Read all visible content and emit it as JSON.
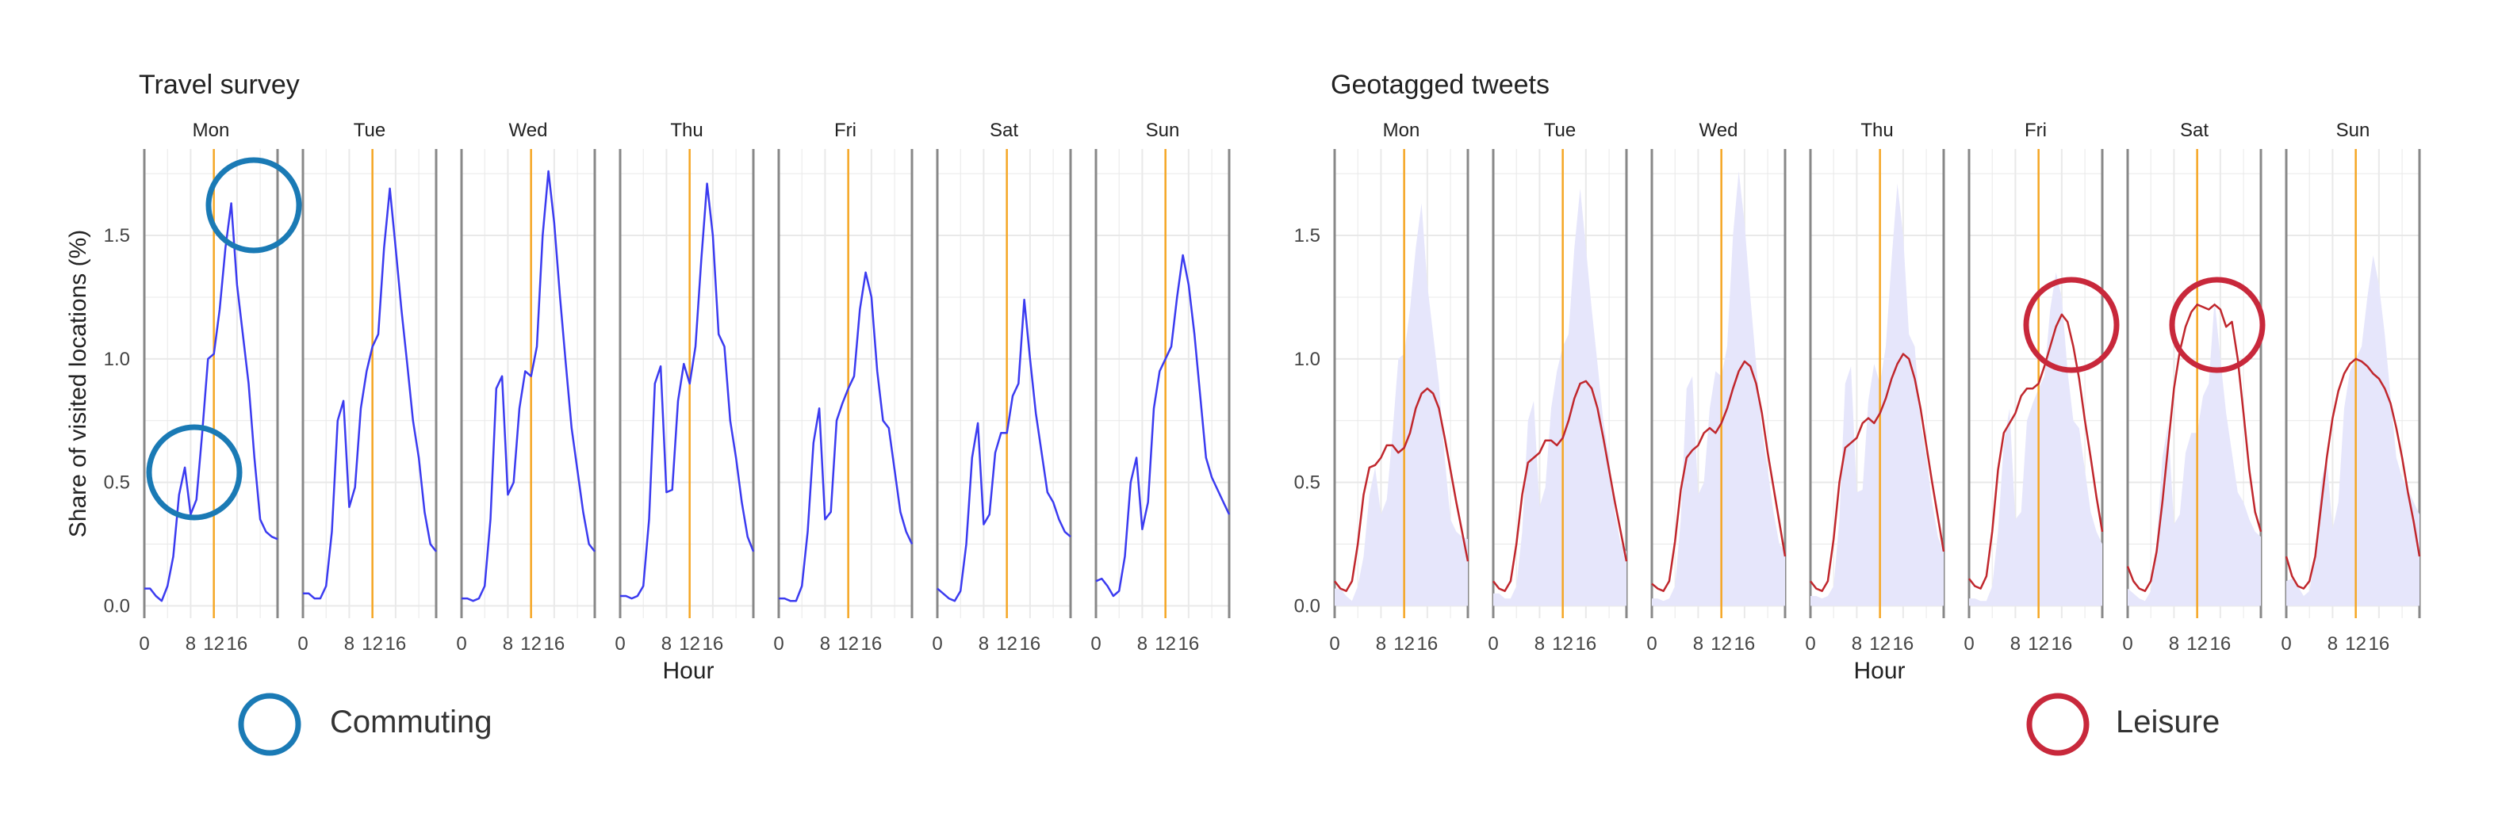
{
  "legend": {
    "commuting_label": "Commuting",
    "leisure_label": "Leisure",
    "commuting_color": "#1a7ab5",
    "leisure_color": "#c8283b"
  },
  "colors": {
    "survey_line": "#3b3bf0",
    "tweet_line": "#c0272d",
    "survey_area": "#e6e6fb",
    "noon_line": "#f5a623",
    "panel_border": "#888888",
    "grid": "#e9e9e9"
  },
  "chart_data": [
    {
      "type": "line",
      "title": "Travel survey",
      "xlabel": "Hour",
      "ylabel": "Share of visited locations (%)",
      "facets": [
        "Mon",
        "Tue",
        "Wed",
        "Thu",
        "Fri",
        "Sat",
        "Sun"
      ],
      "x": [
        0,
        1,
        2,
        3,
        4,
        5,
        6,
        7,
        8,
        9,
        10,
        11,
        12,
        13,
        14,
        15,
        16,
        17,
        18,
        19,
        20,
        21,
        22,
        23
      ],
      "x_ticks": [
        0,
        8,
        12,
        16
      ],
      "x_tick_labels": [
        "0",
        "8",
        "12",
        "16"
      ],
      "y_ticks": [
        0.0,
        0.5,
        1.0,
        1.5
      ],
      "y_tick_labels": [
        "0.0",
        "0.5",
        "1.0",
        "1.5"
      ],
      "ylim": [
        -0.05,
        1.85
      ],
      "vline_x": 12,
      "series": [
        {
          "facet": "Mon",
          "values": [
            0.07,
            0.07,
            0.04,
            0.02,
            0.08,
            0.2,
            0.45,
            0.56,
            0.37,
            0.43,
            0.7,
            1.0,
            1.02,
            1.2,
            1.45,
            1.63,
            1.3,
            1.1,
            0.9,
            0.6,
            0.35,
            0.3,
            0.28,
            0.27
          ]
        },
        {
          "facet": "Tue",
          "values": [
            0.05,
            0.05,
            0.03,
            0.03,
            0.08,
            0.3,
            0.75,
            0.83,
            0.4,
            0.48,
            0.8,
            0.95,
            1.05,
            1.1,
            1.45,
            1.69,
            1.45,
            1.2,
            0.98,
            0.75,
            0.6,
            0.38,
            0.25,
            0.22
          ]
        },
        {
          "facet": "Wed",
          "values": [
            0.03,
            0.03,
            0.02,
            0.03,
            0.08,
            0.35,
            0.88,
            0.93,
            0.45,
            0.5,
            0.8,
            0.95,
            0.93,
            1.05,
            1.5,
            1.76,
            1.55,
            1.25,
            0.98,
            0.72,
            0.55,
            0.38,
            0.25,
            0.22
          ]
        },
        {
          "facet": "Thu",
          "values": [
            0.04,
            0.04,
            0.03,
            0.04,
            0.08,
            0.35,
            0.9,
            0.97,
            0.46,
            0.47,
            0.83,
            0.98,
            0.9,
            1.05,
            1.4,
            1.71,
            1.5,
            1.1,
            1.05,
            0.75,
            0.6,
            0.42,
            0.28,
            0.22
          ]
        },
        {
          "facet": "Fri",
          "values": [
            0.03,
            0.03,
            0.02,
            0.02,
            0.08,
            0.3,
            0.66,
            0.8,
            0.35,
            0.38,
            0.75,
            0.82,
            0.88,
            0.93,
            1.2,
            1.35,
            1.25,
            0.95,
            0.75,
            0.72,
            0.55,
            0.38,
            0.3,
            0.25
          ]
        },
        {
          "facet": "Sat",
          "values": [
            0.07,
            0.05,
            0.03,
            0.02,
            0.06,
            0.25,
            0.6,
            0.74,
            0.33,
            0.37,
            0.62,
            0.7,
            0.7,
            0.85,
            0.9,
            1.24,
            1.0,
            0.78,
            0.62,
            0.46,
            0.42,
            0.35,
            0.3,
            0.28
          ]
        },
        {
          "facet": "Sun",
          "values": [
            0.1,
            0.11,
            0.08,
            0.04,
            0.06,
            0.2,
            0.5,
            0.6,
            0.31,
            0.42,
            0.8,
            0.95,
            1.0,
            1.05,
            1.25,
            1.42,
            1.3,
            1.1,
            0.85,
            0.6,
            0.52,
            0.47,
            0.42,
            0.37
          ]
        }
      ]
    },
    {
      "type": "line",
      "title": "Geotagged tweets",
      "xlabel": "Hour",
      "ylabel": "",
      "facets": [
        "Mon",
        "Tue",
        "Wed",
        "Thu",
        "Fri",
        "Sat",
        "Sun"
      ],
      "x": [
        0,
        1,
        2,
        3,
        4,
        5,
        6,
        7,
        8,
        9,
        10,
        11,
        12,
        13,
        14,
        15,
        16,
        17,
        18,
        19,
        20,
        21,
        22,
        23
      ],
      "x_ticks": [
        0,
        8,
        12,
        16
      ],
      "x_tick_labels": [
        "0",
        "8",
        "12",
        "16"
      ],
      "y_ticks": [
        0.0,
        0.5,
        1.0,
        1.5
      ],
      "y_tick_labels": [
        "0.0",
        "0.5",
        "1.0",
        "1.5"
      ],
      "ylim": [
        -0.05,
        1.85
      ],
      "vline_x": 12,
      "background_area": "Travel survey (shaded)",
      "series": [
        {
          "facet": "Mon",
          "values": [
            0.1,
            0.07,
            0.06,
            0.1,
            0.25,
            0.45,
            0.56,
            0.57,
            0.6,
            0.65,
            0.65,
            0.62,
            0.64,
            0.7,
            0.8,
            0.86,
            0.88,
            0.86,
            0.8,
            0.68,
            0.55,
            0.42,
            0.3,
            0.18
          ]
        },
        {
          "facet": "Tue",
          "values": [
            0.1,
            0.07,
            0.06,
            0.1,
            0.25,
            0.45,
            0.58,
            0.6,
            0.62,
            0.67,
            0.67,
            0.65,
            0.68,
            0.75,
            0.84,
            0.9,
            0.91,
            0.88,
            0.8,
            0.68,
            0.55,
            0.42,
            0.3,
            0.18
          ]
        },
        {
          "facet": "Wed",
          "values": [
            0.09,
            0.07,
            0.06,
            0.1,
            0.26,
            0.47,
            0.6,
            0.63,
            0.65,
            0.7,
            0.72,
            0.7,
            0.74,
            0.8,
            0.88,
            0.95,
            0.99,
            0.97,
            0.9,
            0.78,
            0.62,
            0.48,
            0.34,
            0.2
          ]
        },
        {
          "facet": "Thu",
          "values": [
            0.1,
            0.07,
            0.06,
            0.1,
            0.27,
            0.5,
            0.64,
            0.66,
            0.68,
            0.74,
            0.76,
            0.74,
            0.78,
            0.84,
            0.92,
            0.98,
            1.02,
            1.0,
            0.92,
            0.8,
            0.65,
            0.5,
            0.36,
            0.22
          ]
        },
        {
          "facet": "Fri",
          "values": [
            0.11,
            0.08,
            0.07,
            0.12,
            0.3,
            0.55,
            0.7,
            0.74,
            0.78,
            0.85,
            0.88,
            0.88,
            0.9,
            0.97,
            1.05,
            1.13,
            1.18,
            1.15,
            1.05,
            0.92,
            0.75,
            0.6,
            0.44,
            0.3
          ]
        },
        {
          "facet": "Sat",
          "values": [
            0.16,
            0.1,
            0.07,
            0.06,
            0.1,
            0.22,
            0.42,
            0.65,
            0.88,
            1.03,
            1.13,
            1.19,
            1.22,
            1.21,
            1.2,
            1.22,
            1.2,
            1.13,
            1.15,
            1.0,
            0.78,
            0.55,
            0.38,
            0.3
          ]
        },
        {
          "facet": "Sun",
          "values": [
            0.2,
            0.12,
            0.08,
            0.07,
            0.1,
            0.2,
            0.4,
            0.6,
            0.76,
            0.87,
            0.94,
            0.98,
            1.0,
            0.99,
            0.97,
            0.94,
            0.92,
            0.88,
            0.82,
            0.72,
            0.6,
            0.46,
            0.34,
            0.2
          ]
        }
      ]
    }
  ]
}
